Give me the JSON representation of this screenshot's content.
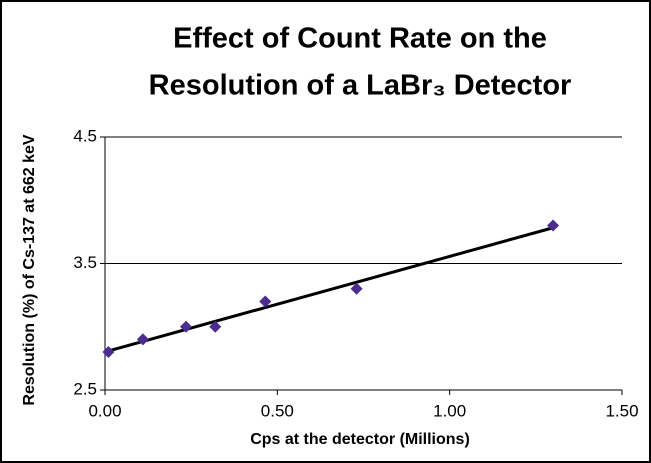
{
  "chart_data": {
    "type": "scatter",
    "title": [
      "Effect of Count Rate on the",
      "Resolution of a LaBr₃ Detector"
    ],
    "x_label": "Cps at the detector (Millions)",
    "y_label": "Resolution (%) of Cs-137 at 662 keV",
    "x": [
      0.01,
      0.11,
      0.235,
      0.32,
      0.465,
      0.73,
      1.3
    ],
    "values": [
      2.8,
      2.9,
      3.0,
      3.0,
      3.2,
      3.3,
      3.8
    ],
    "color": "#4b2d8f",
    "trendline": true,
    "xlim": [
      0,
      1.5
    ],
    "xticks": [
      {
        "value": 0,
        "label": "0.00"
      },
      {
        "value": 0.5,
        "label": "0.50"
      },
      {
        "value": 1,
        "label": "1.00"
      },
      {
        "value": 1.5,
        "label": "1.50"
      }
    ],
    "ylim": [
      2.5,
      4.5
    ],
    "yticks": [
      2.5,
      3.5,
      4.5
    ],
    "grid": true
  }
}
